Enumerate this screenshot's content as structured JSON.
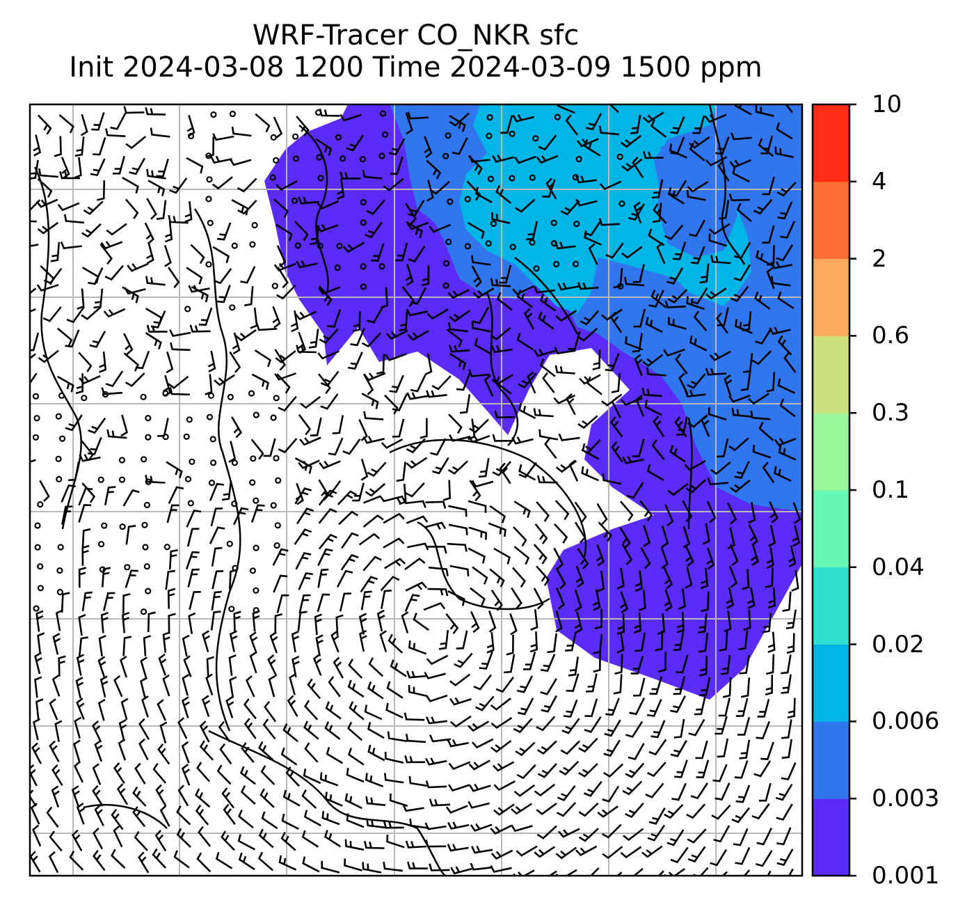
{
  "title": {
    "line1": "WRF-Tracer CO_NKR sfc",
    "line2": "Init 2024-03-08 1200 Time 2024-03-09 1500 ppm"
  },
  "colorbar": {
    "ticks": [
      "0.001",
      "0.003",
      "0.006",
      "0.02",
      "0.04",
      "0.1",
      "0.3",
      "0.6",
      "2",
      "4",
      "10"
    ],
    "colors": [
      "#5b2bf7",
      "#3176ef",
      "#00b4e6",
      "#30dfd0",
      "#66f7b4",
      "#98f798",
      "#cde07e",
      "#fbab5b",
      "#fe6f36",
      "#fe2d16"
    ]
  },
  "map": {
    "grid": "on",
    "overlay": "wind-barbs",
    "coastlines": "on"
  }
}
